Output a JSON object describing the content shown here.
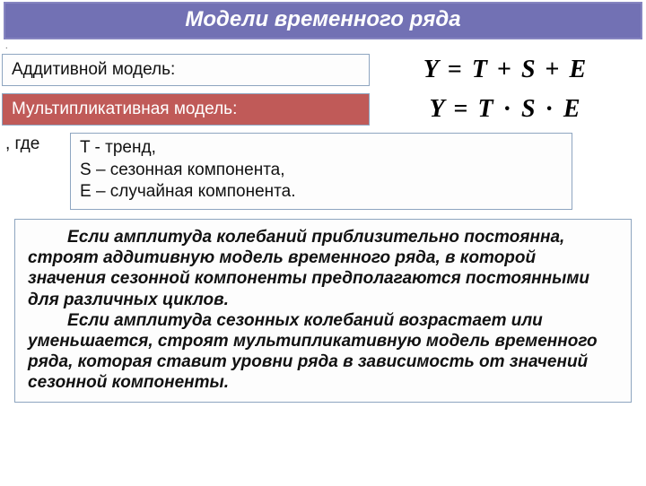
{
  "colors": {
    "title_bg": "#7271b4",
    "title_border": "#8685c0",
    "box_border": "#8ea5c0",
    "red_bg": "#c05a58",
    "text": "#111111",
    "white": "#ffffff"
  },
  "title": "Модели временного ряда",
  "dot": ".",
  "additive": {
    "label": "Аддитивной модель:",
    "formula_html": "Y = T + S + E"
  },
  "multiplicative": {
    "label": "Мультипликативная модель:",
    "formula_html": "Y = T · S · E"
  },
  "where_label": ", где",
  "defs": {
    "t": "T - тренд,",
    "s": "S – сезонная компонента,",
    "e": "E – случайная компонента."
  },
  "explain": {
    "p1": "Если амплитуда колебаний приблизительно постоянна, строят аддитивную модель временного ряда, в которой значения сезонной компоненты предполагаются постоянными для различных циклов.",
    "p2": "Если амплитуда сезонных колебаний возрастает или уменьшается, строят мультипликативную модель временного ряда, которая ставит уровни ряда в зависимость от значений сезонной компоненты."
  }
}
